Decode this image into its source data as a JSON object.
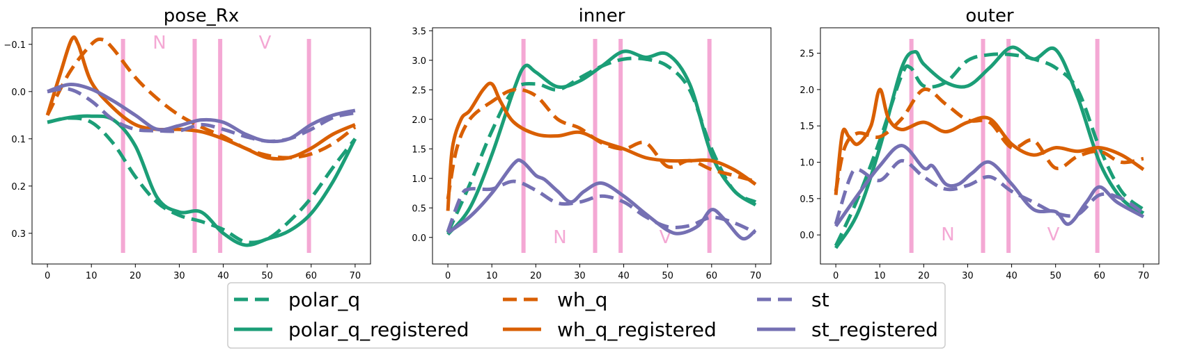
{
  "chart_data": [
    {
      "type": "line",
      "title": "pose_Rx",
      "xlim": [
        -3.5,
        73.5
      ],
      "ylim": [
        0.365,
        -0.135
      ],
      "y_inverted": true,
      "xticks": [
        0,
        10,
        20,
        30,
        40,
        50,
        60,
        70
      ],
      "yticks": [
        -0.1,
        0.0,
        0.1,
        0.2,
        0.3
      ],
      "ytick_labels": [
        "−0.1",
        "0.0",
        "0.1",
        "0.2",
        "0.3"
      ],
      "vlines": [
        17.2,
        33.5,
        39.3,
        59.5
      ],
      "annotations": [
        {
          "text": "N",
          "x": 25.5,
          "y": -0.103
        },
        {
          "text": "V",
          "x": 49.5,
          "y": -0.103
        }
      ],
      "series": [
        {
          "key": "polar_q",
          "x": [
            0,
            5,
            10,
            15,
            20,
            25,
            30,
            35,
            40,
            45,
            50,
            55,
            60,
            65,
            70
          ],
          "y": [
            0.065,
            0.056,
            0.065,
            0.11,
            0.18,
            0.235,
            0.262,
            0.275,
            0.292,
            0.318,
            0.312,
            0.275,
            0.225,
            0.16,
            0.1
          ]
        },
        {
          "key": "polar_q_registered",
          "x": [
            0,
            5,
            10,
            15,
            20,
            25,
            30,
            35,
            40,
            45,
            50,
            55,
            60,
            65,
            70
          ],
          "y": [
            0.065,
            0.055,
            0.052,
            0.06,
            0.115,
            0.225,
            0.255,
            0.255,
            0.3,
            0.325,
            0.312,
            0.295,
            0.258,
            0.19,
            0.1
          ]
        },
        {
          "key": "wh_q",
          "x": [
            0,
            5,
            10,
            12.5,
            15,
            20,
            25,
            30,
            35,
            40,
            45,
            50,
            55,
            60,
            65,
            70
          ],
          "y": [
            0.05,
            -0.04,
            -0.1,
            -0.11,
            -0.09,
            -0.03,
            0.015,
            0.05,
            0.075,
            0.095,
            0.12,
            0.135,
            0.14,
            0.132,
            0.11,
            0.075
          ]
        },
        {
          "key": "wh_q_registered",
          "x": [
            0,
            3,
            5.5,
            7,
            10,
            15,
            20,
            25,
            30,
            35,
            40,
            45,
            50,
            55,
            60,
            65,
            70
          ],
          "y": [
            0.05,
            -0.04,
            -0.11,
            -0.1,
            -0.02,
            0.035,
            0.07,
            0.08,
            0.08,
            0.085,
            0.1,
            0.12,
            0.14,
            0.14,
            0.12,
            0.09,
            0.07
          ]
        },
        {
          "key": "st",
          "x": [
            0,
            5,
            10,
            15,
            20,
            25,
            30,
            35,
            40,
            45,
            50,
            55,
            60,
            65,
            70
          ],
          "y": [
            0.0,
            -0.005,
            0.02,
            0.06,
            0.08,
            0.083,
            0.083,
            0.07,
            0.08,
            0.095,
            0.105,
            0.1,
            0.08,
            0.055,
            0.045
          ]
        },
        {
          "key": "st_registered",
          "x": [
            0,
            5,
            10,
            15,
            20,
            25,
            30,
            35,
            40,
            45,
            50,
            55,
            60,
            65,
            70
          ],
          "y": [
            0.0,
            -0.015,
            -0.005,
            0.02,
            0.05,
            0.08,
            0.072,
            0.06,
            0.065,
            0.09,
            0.105,
            0.1,
            0.07,
            0.05,
            0.04
          ]
        }
      ]
    },
    {
      "type": "line",
      "title": "inner",
      "xlim": [
        -3.5,
        73.5
      ],
      "ylim": [
        -0.45,
        3.55
      ],
      "xticks": [
        0,
        10,
        20,
        30,
        40,
        50,
        60,
        70
      ],
      "yticks": [
        0.0,
        0.5,
        1.0,
        1.5,
        2.0,
        2.5,
        3.0,
        3.5
      ],
      "ytick_labels": [
        "0.0",
        "0.5",
        "1.0",
        "1.5",
        "2.0",
        "2.5",
        "3.0",
        "3.5"
      ],
      "vlines": [
        17.2,
        33.5,
        39.3,
        59.5
      ],
      "annotations": [
        {
          "text": "N",
          "x": 25.5,
          "y": 0.0
        },
        {
          "text": "V",
          "x": 49.5,
          "y": 0.0
        }
      ],
      "series": [
        {
          "key": "polar_q",
          "x": [
            0,
            5,
            10,
            15,
            20,
            25,
            30,
            35,
            40,
            45,
            50,
            55,
            60,
            65,
            70
          ],
          "y": [
            0.08,
            0.9,
            1.8,
            2.5,
            2.6,
            2.5,
            2.7,
            2.9,
            3.02,
            3.02,
            2.9,
            2.5,
            1.5,
            0.8,
            0.6
          ]
        },
        {
          "key": "polar_q_registered",
          "x": [
            0,
            5,
            10,
            15,
            17.5,
            20,
            25,
            30,
            35,
            40,
            45,
            50,
            55,
            60,
            65,
            70
          ],
          "y": [
            0.05,
            0.5,
            1.4,
            2.5,
            2.9,
            2.8,
            2.55,
            2.65,
            2.9,
            3.15,
            3.05,
            3.1,
            2.6,
            1.4,
            0.8,
            0.55
          ]
        },
        {
          "key": "wh_q",
          "x": [
            0,
            2,
            5,
            10,
            15,
            20,
            25,
            30,
            35,
            40,
            45,
            50,
            55,
            60,
            65,
            70
          ],
          "y": [
            0.65,
            1.5,
            2.0,
            2.3,
            2.5,
            2.4,
            2.0,
            1.85,
            1.6,
            1.5,
            1.6,
            1.2,
            1.3,
            1.15,
            1.05,
            0.95
          ]
        },
        {
          "key": "wh_q_registered",
          "x": [
            0,
            1,
            3,
            5,
            8,
            10,
            12,
            15,
            20,
            25,
            30,
            35,
            40,
            45,
            50,
            55,
            60,
            65,
            70
          ],
          "y": [
            0.45,
            1.5,
            2.0,
            2.15,
            2.5,
            2.6,
            2.3,
            1.95,
            1.75,
            1.72,
            1.78,
            1.62,
            1.5,
            1.35,
            1.3,
            1.3,
            1.3,
            1.15,
            0.9
          ]
        },
        {
          "key": "st",
          "x": [
            0,
            3,
            5,
            10,
            15,
            20,
            25,
            30,
            35,
            40,
            45,
            50,
            55,
            60,
            65,
            70
          ],
          "y": [
            0.1,
            0.7,
            0.82,
            0.82,
            0.95,
            0.8,
            0.58,
            0.6,
            0.7,
            0.6,
            0.35,
            0.18,
            0.2,
            0.34,
            0.25,
            0.08
          ]
        },
        {
          "key": "st_registered",
          "x": [
            0,
            5,
            10,
            15,
            17,
            20,
            22,
            25,
            28,
            31,
            35,
            40,
            45,
            50,
            53,
            57,
            60,
            63,
            67,
            70
          ],
          "y": [
            0.08,
            0.35,
            0.75,
            1.25,
            1.28,
            1.05,
            0.98,
            0.78,
            0.6,
            0.78,
            0.92,
            0.7,
            0.4,
            0.12,
            0.07,
            0.2,
            0.47,
            0.3,
            -0.02,
            0.12
          ]
        }
      ]
    },
    {
      "type": "line",
      "title": "outer",
      "xlim": [
        -3.5,
        73.5
      ],
      "ylim": [
        -0.4,
        2.85
      ],
      "xticks": [
        0,
        10,
        20,
        30,
        40,
        50,
        60,
        70
      ],
      "yticks": [
        0.0,
        0.5,
        1.0,
        1.5,
        2.0,
        2.5
      ],
      "ytick_labels": [
        "0.0",
        "0.5",
        "1.0",
        "1.5",
        "2.0",
        "2.5"
      ],
      "vlines": [
        17.2,
        33.5,
        39.3,
        59.5
      ],
      "annotations": [
        {
          "text": "N",
          "x": 25.5,
          "y": 0.0
        },
        {
          "text": "V",
          "x": 49.5,
          "y": 0.0
        }
      ],
      "series": [
        {
          "key": "polar_q",
          "x": [
            0,
            5,
            10,
            15,
            17,
            20,
            25,
            30,
            35,
            40,
            45,
            50,
            55,
            60,
            65,
            70
          ],
          "y": [
            -0.15,
            0.5,
            1.3,
            2.2,
            2.3,
            2.05,
            2.1,
            2.4,
            2.48,
            2.48,
            2.42,
            2.3,
            2.0,
            1.2,
            0.6,
            0.35
          ]
        },
        {
          "key": "polar_q_registered",
          "x": [
            0,
            5,
            10,
            15,
            18,
            20,
            25,
            30,
            35,
            40,
            45,
            50,
            55,
            60,
            65,
            70
          ],
          "y": [
            -0.18,
            0.3,
            1.2,
            2.3,
            2.52,
            2.35,
            2.1,
            2.05,
            2.3,
            2.58,
            2.42,
            2.55,
            1.9,
            1.0,
            0.5,
            0.3
          ]
        },
        {
          "key": "wh_q",
          "x": [
            0,
            2,
            5,
            10,
            15,
            20,
            25,
            30,
            35,
            40,
            45,
            50,
            55,
            60,
            65,
            70
          ],
          "y": [
            0.6,
            1.2,
            1.4,
            1.35,
            1.6,
            2.0,
            1.8,
            1.58,
            1.55,
            1.2,
            1.3,
            0.92,
            1.08,
            1.15,
            1.0,
            1.05
          ]
        },
        {
          "key": "wh_q_registered",
          "x": [
            0,
            1.5,
            3,
            5,
            8,
            10,
            12,
            15,
            20,
            25,
            30,
            35,
            40,
            45,
            50,
            55,
            60,
            65,
            70
          ],
          "y": [
            0.55,
            1.4,
            1.35,
            1.25,
            1.5,
            2.0,
            1.6,
            1.45,
            1.55,
            1.42,
            1.55,
            1.6,
            1.25,
            1.1,
            1.2,
            1.15,
            1.2,
            1.1,
            0.9
          ]
        },
        {
          "key": "st",
          "x": [
            0,
            3,
            5,
            10,
            15,
            20,
            25,
            30,
            35,
            40,
            45,
            50,
            55,
            60,
            65,
            70
          ],
          "y": [
            0.15,
            0.75,
            0.9,
            0.75,
            1.02,
            0.8,
            0.63,
            0.68,
            0.8,
            0.6,
            0.45,
            0.3,
            0.28,
            0.55,
            0.5,
            0.3
          ]
        },
        {
          "key": "st_registered",
          "x": [
            0,
            5,
            10,
            15,
            20,
            22,
            25,
            28,
            31,
            35,
            40,
            45,
            50,
            53,
            57,
            60,
            64,
            70
          ],
          "y": [
            0.12,
            0.55,
            0.95,
            1.23,
            0.92,
            0.95,
            0.7,
            0.7,
            0.85,
            1.0,
            0.7,
            0.35,
            0.32,
            0.15,
            0.45,
            0.66,
            0.45,
            0.25
          ]
        }
      ]
    }
  ],
  "legend": {
    "placement": "bottom-center",
    "columns": 3,
    "entries": [
      {
        "key": "polar_q",
        "label": "polar_q",
        "color": "#1b9e77",
        "dashed": true
      },
      {
        "key": "polar_q_registered",
        "label": "polar_q_registered",
        "color": "#1b9e77",
        "dashed": false
      },
      {
        "key": "wh_q",
        "label": "wh_q",
        "color": "#d95f02",
        "dashed": true
      },
      {
        "key": "wh_q_registered",
        "label": "wh_q_registered",
        "color": "#d95f02",
        "dashed": false
      },
      {
        "key": "st",
        "label": "st",
        "color": "#7570b3",
        "dashed": true
      },
      {
        "key": "st_registered",
        "label": "st_registered",
        "color": "#7570b3",
        "dashed": false
      }
    ]
  },
  "colors": {
    "vline": "#f4a8d4",
    "annotation": "#f4a8d4"
  }
}
